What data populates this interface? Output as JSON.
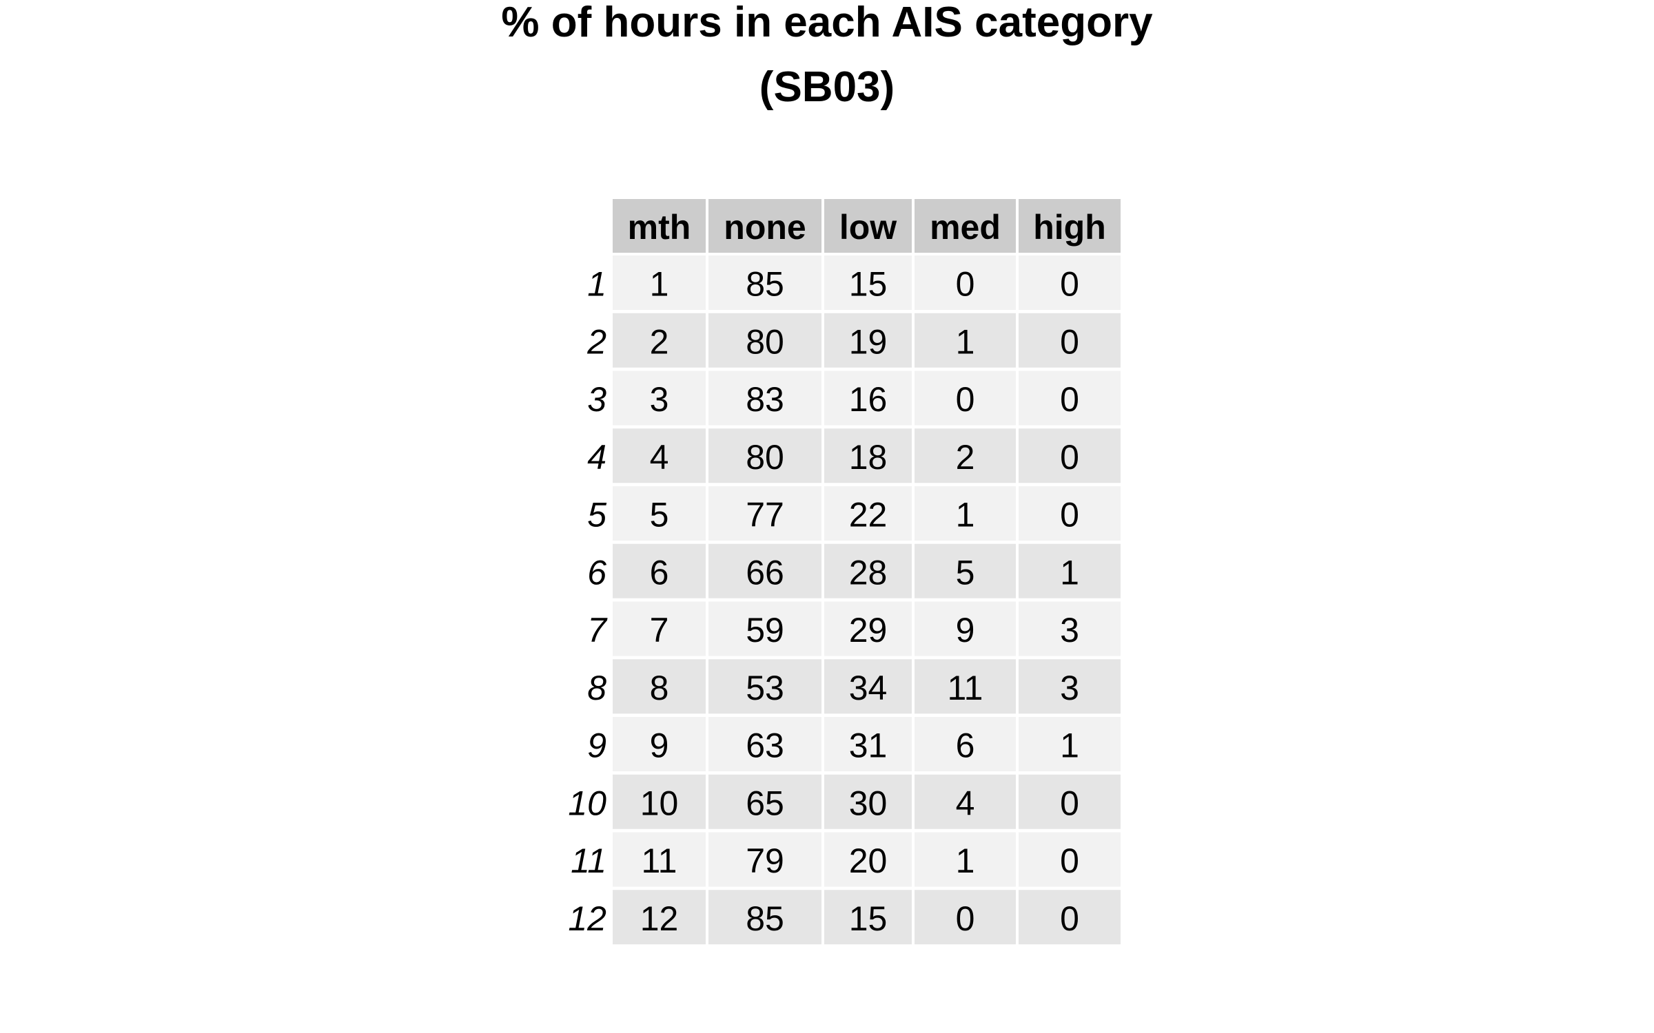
{
  "title_line_1": "% of hours in each AIS category",
  "title_line_2": "(SB03)",
  "colors": {
    "header_bg": "#cccccc",
    "row_odd_bg": "#f2f2f2",
    "row_even_bg": "#e5e5e5",
    "grid": "#ffffff",
    "text": "#000000"
  },
  "chart_data": {
    "type": "table",
    "title": "% of hours in each AIS category\n(SB03)",
    "columns": [
      "mth",
      "none",
      "low",
      "med",
      "high"
    ],
    "row_names": [
      "1",
      "2",
      "3",
      "4",
      "5",
      "6",
      "7",
      "8",
      "9",
      "10",
      "11",
      "12"
    ],
    "rows": [
      [
        "1",
        "85",
        "15",
        "0",
        "0"
      ],
      [
        "2",
        "80",
        "19",
        "1",
        "0"
      ],
      [
        "3",
        "83",
        "16",
        "0",
        "0"
      ],
      [
        "4",
        "80",
        "18",
        "2",
        "0"
      ],
      [
        "5",
        "77",
        "22",
        "1",
        "0"
      ],
      [
        "6",
        "66",
        "28",
        "5",
        "1"
      ],
      [
        "7",
        "59",
        "29",
        "9",
        "3"
      ],
      [
        "8",
        "53",
        "34",
        "11",
        "3"
      ],
      [
        "9",
        "63",
        "31",
        "6",
        "1"
      ],
      [
        "10",
        "65",
        "30",
        "4",
        "0"
      ],
      [
        "11",
        "79",
        "20",
        "1",
        "0"
      ],
      [
        "12",
        "85",
        "15",
        "0",
        "0"
      ]
    ]
  }
}
